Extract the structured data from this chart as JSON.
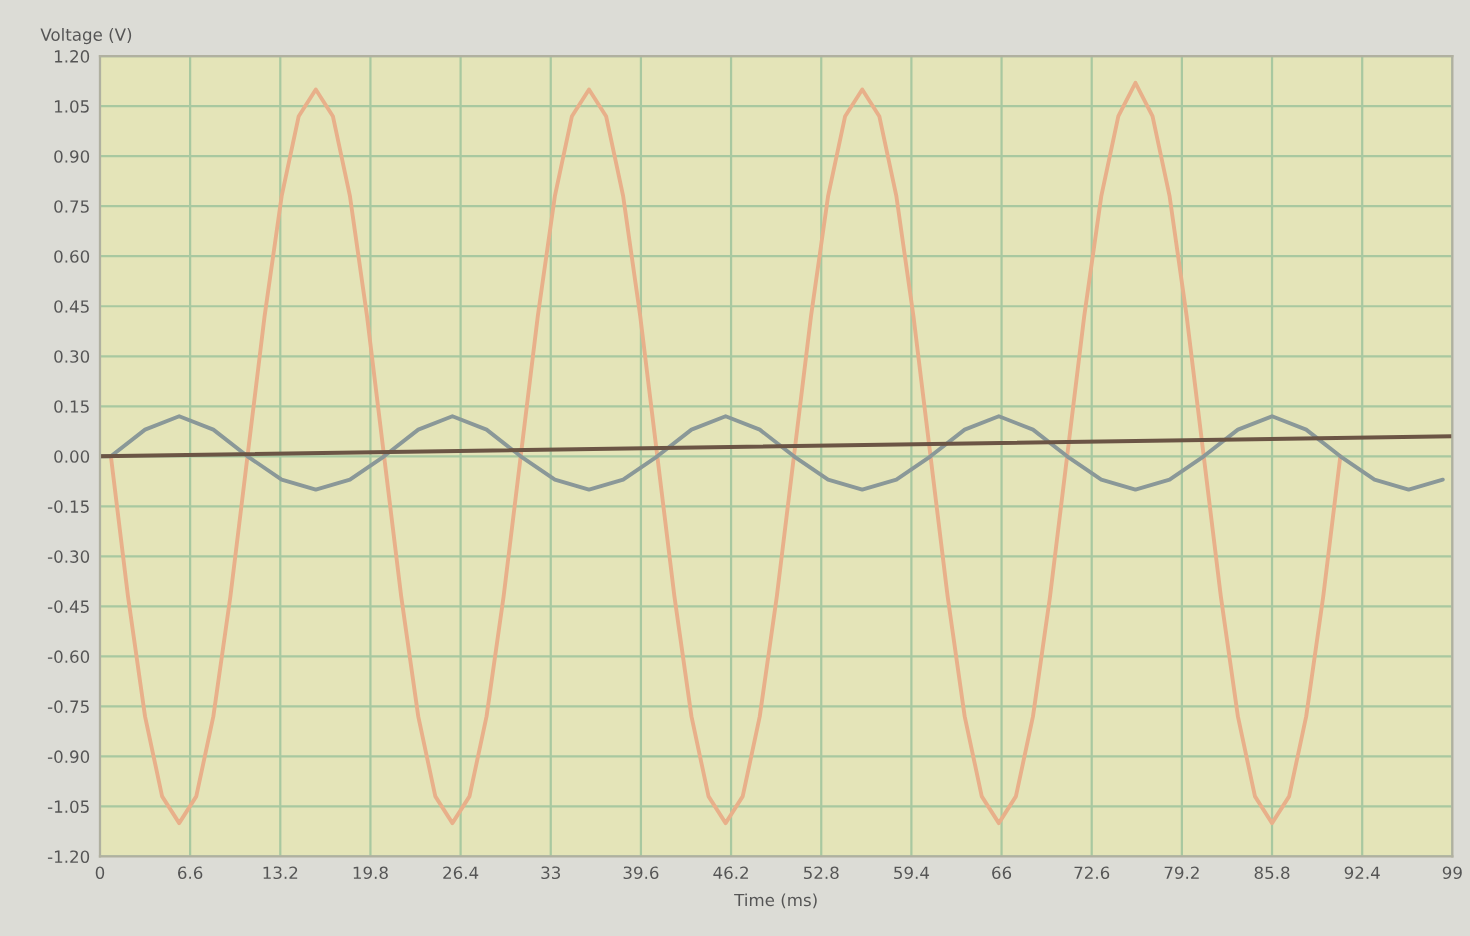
{
  "chart_data": {
    "type": "line",
    "ylabel": "Voltage (V)",
    "xlabel": "Time (ms)",
    "series": [
      {
        "color": "#e8b08a",
        "x": [
          0.8,
          2.05,
          3.3,
          4.55,
          5.8,
          7.05,
          8.3,
          9.55,
          10.8,
          12.05,
          13.3,
          14.55,
          15.8,
          17.05,
          18.3,
          19.55,
          20.8,
          22.05,
          23.3,
          24.55,
          25.8,
          27.05,
          28.3,
          29.55,
          30.8,
          32.05,
          33.3,
          34.55,
          35.8,
          37.05,
          38.3,
          39.55,
          40.8,
          42.05,
          43.3,
          44.55,
          45.8,
          47.05,
          48.3,
          49.55,
          50.8,
          52.05,
          53.3,
          54.55,
          55.8,
          57.05,
          58.3,
          59.55,
          60.8,
          62.05,
          63.3,
          64.55,
          65.8,
          67.05,
          68.3,
          69.55,
          70.8,
          72.05,
          73.3,
          74.55,
          75.8,
          77.05,
          78.3,
          79.55,
          80.8,
          82.05,
          83.3,
          84.55,
          85.8,
          87.05,
          88.3,
          89.55,
          90.8
        ],
        "values": [
          0,
          -0.42,
          -0.78,
          -1.02,
          -1.1,
          -1.02,
          -0.78,
          -0.42,
          0,
          0.42,
          0.78,
          1.02,
          1.1,
          1.02,
          0.78,
          0.42,
          0,
          -0.42,
          -0.78,
          -1.02,
          -1.1,
          -1.02,
          -0.78,
          -0.42,
          0,
          0.42,
          0.78,
          1.02,
          1.1,
          1.02,
          0.78,
          0.42,
          0,
          -0.42,
          -0.78,
          -1.02,
          -1.1,
          -1.02,
          -0.78,
          -0.42,
          0,
          0.42,
          0.78,
          1.02,
          1.1,
          1.02,
          0.78,
          0.42,
          0,
          -0.42,
          -0.78,
          -1.02,
          -1.1,
          -1.02,
          -0.78,
          -0.42,
          0,
          0.42,
          0.78,
          1.02,
          1.12,
          1.02,
          0.78,
          0.42,
          0,
          -0.42,
          -0.78,
          -1.02,
          -1.1,
          -1.02,
          -0.78,
          -0.42,
          0
        ]
      },
      {
        "color": "#8a9898",
        "x": [
          0,
          0.8,
          3.3,
          5.8,
          8.3,
          10.8,
          13.3,
          15.8,
          18.3,
          20.8,
          23.3,
          25.8,
          28.3,
          30.8,
          33.3,
          35.8,
          38.3,
          40.8,
          43.3,
          45.8,
          48.3,
          50.8,
          53.3,
          55.8,
          58.3,
          60.8,
          63.3,
          65.8,
          68.3,
          70.8,
          73.3,
          75.8,
          78.3,
          80.8,
          83.3,
          85.8,
          88.3,
          90.8,
          93.3,
          95.8,
          98.3
        ],
        "values": [
          0,
          0,
          0.08,
          0.12,
          0.08,
          0,
          -0.07,
          -0.1,
          -0.07,
          0,
          0.08,
          0.12,
          0.08,
          0,
          -0.07,
          -0.1,
          -0.07,
          0,
          0.08,
          0.12,
          0.08,
          0,
          -0.07,
          -0.1,
          -0.07,
          0,
          0.08,
          0.12,
          0.08,
          0,
          -0.07,
          -0.1,
          -0.07,
          0,
          0.08,
          0.12,
          0.08,
          0,
          -0.07,
          -0.1,
          -0.07
        ]
      },
      {
        "color": "#6b5545",
        "x": [
          0,
          99
        ],
        "values": [
          0,
          0.06
        ]
      }
    ],
    "xlim": [
      0,
      99
    ],
    "xticks": [
      0,
      6.6,
      13.2,
      19.8,
      26.4,
      33,
      39.6,
      46.2,
      52.8,
      59.4,
      66,
      72.6,
      79.2,
      85.8,
      92.4,
      99
    ],
    "ylim": [
      -1.2,
      1.2
    ],
    "yticks": [
      {
        "value": 1.2,
        "label": "1.20"
      },
      {
        "value": 1.05,
        "label": "1.05"
      },
      {
        "value": 0.9,
        "label": "0.90"
      },
      {
        "value": 0.75,
        "label": "0.75"
      },
      {
        "value": 0.6,
        "label": "0.60"
      },
      {
        "value": 0.45,
        "label": "0.45"
      },
      {
        "value": 0.3,
        "label": "0.30"
      },
      {
        "value": 0.15,
        "label": "0.15"
      },
      {
        "value": 0,
        "label": "0.00"
      },
      {
        "value": -0.15,
        "label": "-0.15"
      },
      {
        "value": -0.3,
        "label": "-0.30"
      },
      {
        "value": -0.45,
        "label": "-0.45"
      },
      {
        "value": -0.6,
        "label": "-0.60"
      },
      {
        "value": -0.75,
        "label": "-0.75"
      },
      {
        "value": -0.9,
        "label": "-0.90"
      },
      {
        "value": -1.05,
        "label": "-1.05"
      },
      {
        "value": -1.2,
        "label": "-1.20"
      }
    ],
    "grid": true
  }
}
